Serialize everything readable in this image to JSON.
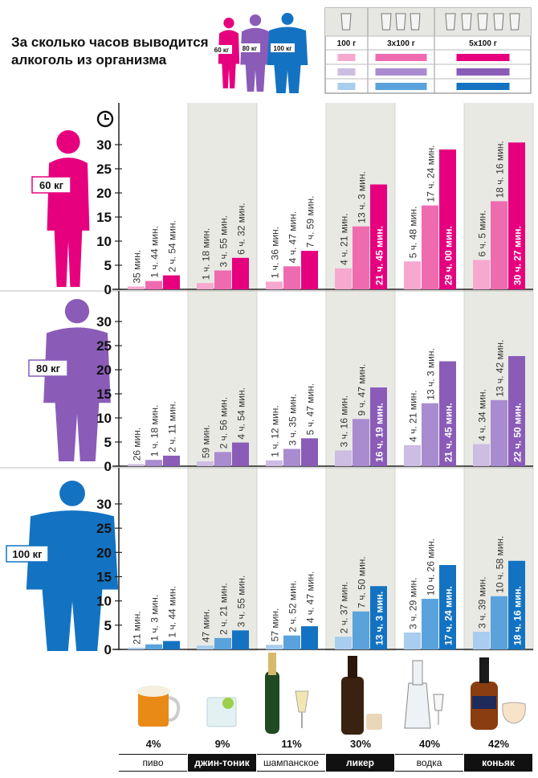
{
  "title_line1": "За сколько часов выводится",
  "title_line2": "алкоголь из организма",
  "header_figure_labels": [
    "60 кг",
    "80 кг",
    "100 кг"
  ],
  "dose_table": {
    "headers": [
      "100 г",
      "3х100 г",
      "5х100 г"
    ]
  },
  "colors": {
    "60": [
      "#f7a8cf",
      "#ef6bb0",
      "#e6007e"
    ],
    "80": [
      "#cdbde3",
      "#a98ccf",
      "#8a5cb8"
    ],
    "100": [
      "#a8cdee",
      "#5aa2dc",
      "#1373c2"
    ]
  },
  "drinks": [
    {
      "name": "пиво",
      "percent": "4%",
      "dark": false
    },
    {
      "name": "джин-тоник",
      "percent": "9%",
      "dark": true
    },
    {
      "name": "шампанское",
      "percent": "11%",
      "dark": false
    },
    {
      "name": "ликер",
      "percent": "30%",
      "dark": true
    },
    {
      "name": "водка",
      "percent": "40%",
      "dark": false
    },
    {
      "name": "коньяк",
      "percent": "42%",
      "dark": true
    }
  ],
  "chart_data": {
    "type": "bar",
    "ylim": [
      0,
      30
    ],
    "yticks": [
      0,
      5,
      10,
      15,
      20,
      25,
      30
    ],
    "categories": [
      "пиво",
      "джин-тоник",
      "шампанское",
      "ликер",
      "водка",
      "коньяк"
    ],
    "doses": [
      "100 г",
      "3х100 г",
      "5х100 г"
    ],
    "panels": [
      {
        "weight": "60 кг",
        "series": [
          {
            "name": "100 г",
            "values": [
              0.58,
              1.3,
              1.6,
              4.35,
              5.8,
              6.08
            ],
            "labels": [
              "35 мин.",
              "1 ч. 18 мин.",
              "1 ч. 36 мин.",
              "4 ч. 21 мин.",
              "5 ч. 48 мин.",
              "6 ч. 5 мин."
            ]
          },
          {
            "name": "3х100 г",
            "values": [
              1.73,
              3.92,
              4.78,
              13.05,
              17.4,
              18.27
            ],
            "labels": [
              "1 ч. 44 мин.",
              "3 ч. 55 мин.",
              "4 ч. 47 мин.",
              "13 ч. 3 мин.",
              "17 ч. 24 мин.",
              "18 ч. 16 мин."
            ]
          },
          {
            "name": "5х100 г",
            "values": [
              2.9,
              6.53,
              7.98,
              21.75,
              29.0,
              30.45
            ],
            "labels": [
              "2 ч. 54 мин.",
              "6 ч. 32 мин.",
              "7 ч. 59 мин.",
              "21 ч. 45 мин.",
              "29 ч. 00 мин.",
              "30 ч. 27 мин."
            ]
          }
        ]
      },
      {
        "weight": "80 кг",
        "series": [
          {
            "name": "100 г",
            "values": [
              0.43,
              0.98,
              1.2,
              3.27,
              4.35,
              4.57
            ],
            "labels": [
              "26 мин.",
              "59 мин.",
              "1 ч. 12 мин.",
              "3 ч. 16 мин.",
              "4 ч. 21 мин.",
              "4 ч. 34 мин."
            ]
          },
          {
            "name": "3х100 г",
            "values": [
              1.3,
              2.93,
              3.58,
              9.78,
              13.05,
              13.7
            ],
            "labels": [
              "1 ч. 18 мин.",
              "2 ч. 56 мин.",
              "3 ч. 35 мин.",
              "9 ч. 47 мин.",
              "13 ч. 3 мин.",
              "13 ч. 42 мин."
            ]
          },
          {
            "name": "5х100 г",
            "values": [
              2.18,
              4.9,
              5.78,
              16.32,
              21.75,
              22.83
            ],
            "labels": [
              "2 ч. 11 мин.",
              "4 ч. 54 мин.",
              "5 ч. 47 мин.",
              "16 ч. 19 мин.",
              "21 ч. 45 мин.",
              "22 ч. 50 мин."
            ]
          }
        ]
      },
      {
        "weight": "100 кг",
        "series": [
          {
            "name": "100 г",
            "values": [
              0.35,
              0.78,
              0.95,
              2.62,
              3.48,
              3.65
            ],
            "labels": [
              "21 мин.",
              "47 мин.",
              "57 мин.",
              "2 ч. 37 мин.",
              "3 ч. 29 мин.",
              "3 ч. 39 мин."
            ]
          },
          {
            "name": "3х100 г",
            "values": [
              1.05,
              2.35,
              2.87,
              7.83,
              10.43,
              10.97
            ],
            "labels": [
              "1 ч. 3 мин.",
              "2 ч. 21 мин.",
              "2 ч. 52 мин.",
              "7 ч. 50 мин.",
              "10 ч. 26 мин.",
              "10 ч. 58 мин."
            ]
          },
          {
            "name": "5х100 г",
            "values": [
              1.73,
              3.92,
              4.78,
              13.05,
              17.4,
              18.27
            ],
            "labels": [
              "1 ч. 44 мин.",
              "3 ч. 55 мин.",
              "4 ч. 47 мин.",
              "13 ч. 3 мин.",
              "17 ч. 24 мин.",
              "18 ч. 16 мин."
            ]
          }
        ]
      }
    ]
  }
}
